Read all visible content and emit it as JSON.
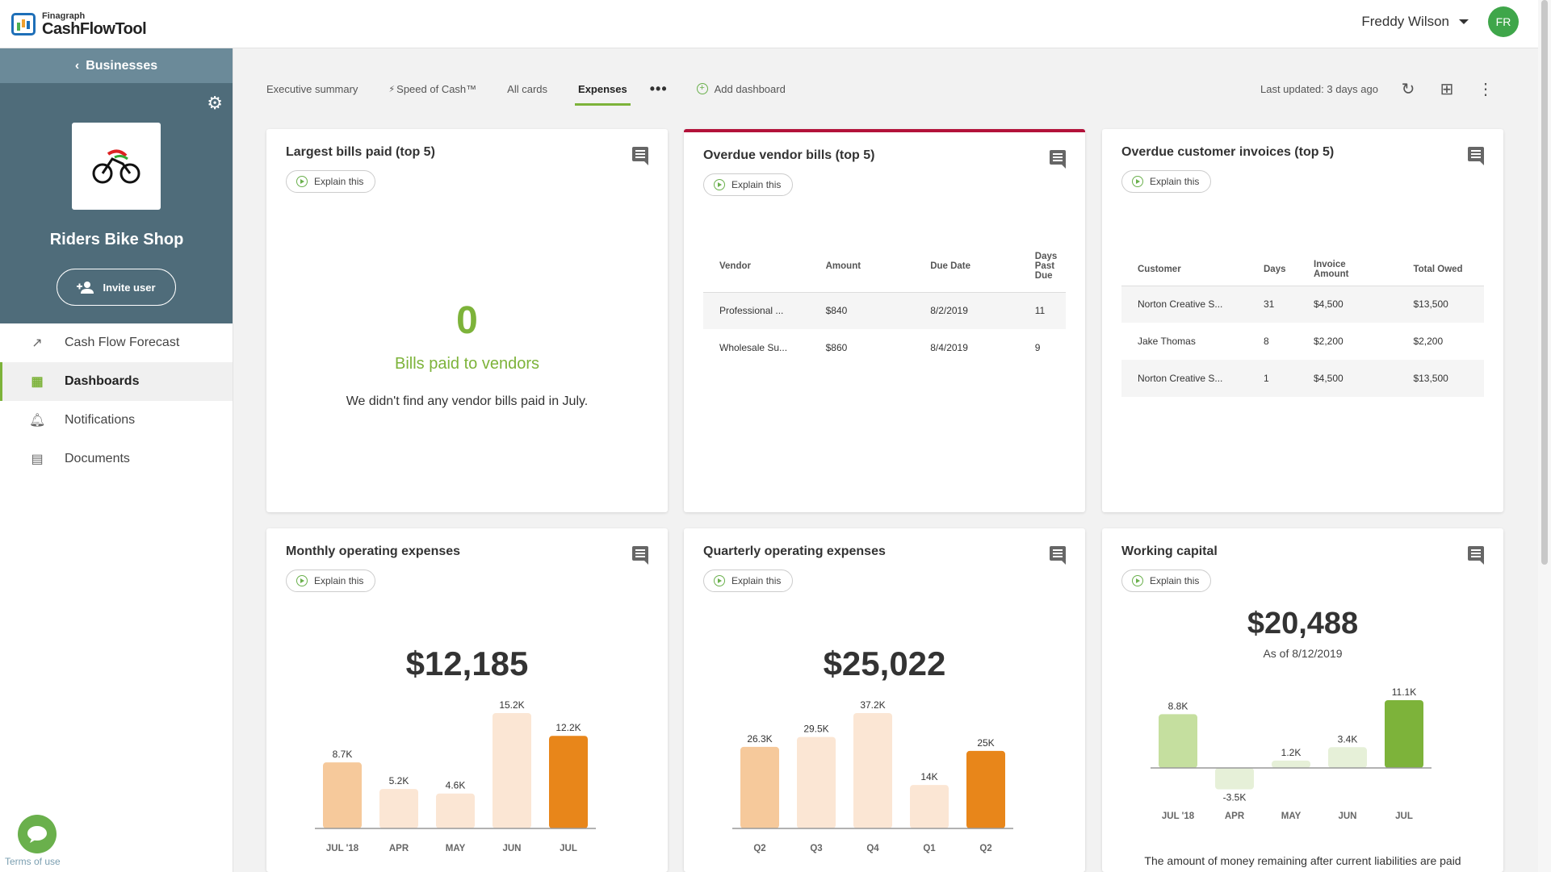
{
  "app": {
    "logo_small": "Finagraph",
    "logo_big": "CashFlowTool"
  },
  "user": {
    "name": "Freddy Wilson",
    "initials": "FR",
    "avatar_color": "#3fa64a"
  },
  "sidebar": {
    "back_label": "Businesses",
    "business_name": "Riders Bike Shop",
    "invite_label": "Invite user",
    "items": [
      {
        "label": "Cash Flow Forecast",
        "icon": "trending-up-icon"
      },
      {
        "label": "Dashboards",
        "icon": "dashboard-grid-icon",
        "active": true
      },
      {
        "label": "Notifications",
        "icon": "bell-icon"
      },
      {
        "label": "Documents",
        "icon": "document-icon"
      }
    ],
    "terms": "Terms of use"
  },
  "tabs": {
    "items": [
      "Executive summary",
      "Speed of Cash™",
      "All cards",
      "Expenses"
    ],
    "active": "Expenses",
    "add_label": "Add dashboard",
    "last_updated": "Last updated: 3 days ago"
  },
  "explain_label": "Explain this",
  "cards": {
    "largest_bills": {
      "title": "Largest bills paid (top 5)",
      "value": "0",
      "value_label": "Bills paid to vendors",
      "description": "We didn't find any vendor bills paid in July."
    },
    "overdue_vendor": {
      "title": "Overdue vendor bills (top 5)",
      "columns": [
        "Vendor",
        "Amount",
        "Due Date",
        "Days Past Due"
      ],
      "rows": [
        [
          "Professional ...",
          "$840",
          "8/2/2019",
          "11"
        ],
        [
          "Wholesale Su...",
          "$860",
          "8/4/2019",
          "9"
        ]
      ]
    },
    "overdue_customer": {
      "title": "Overdue customer invoices (top 5)",
      "columns": [
        "Customer",
        "Days",
        "Invoice Amount",
        "Total Owed"
      ],
      "rows": [
        [
          "Norton Creative S...",
          "31",
          "$4,500",
          "$13,500"
        ],
        [
          "Jake Thomas",
          "8",
          "$2,200",
          "$2,200"
        ],
        [
          "Norton Creative S...",
          "1",
          "$4,500",
          "$13,500"
        ]
      ]
    },
    "monthly": {
      "title": "Monthly operating expenses",
      "total": "$12,185"
    },
    "quarterly": {
      "title": "Quarterly operating expenses",
      "total": "$25,022"
    },
    "working": {
      "title": "Working capital",
      "total": "$20,488",
      "as_of": "As of 8/12/2019",
      "description": "The amount of money remaining after current liabilities are paid"
    }
  },
  "colors": {
    "accent_green": "#7db33a",
    "alert_red": "#b3123a",
    "orange": "#e8861a"
  },
  "chart_data": [
    {
      "type": "bar",
      "name": "monthly",
      "categories": [
        "JUL '18",
        "APR",
        "MAY",
        "JUN",
        "JUL"
      ],
      "values": [
        8.7,
        5.2,
        4.6,
        15.2,
        12.2
      ],
      "labels": [
        "8.7K",
        "5.2K",
        "4.6K",
        "15.2K",
        "12.2K"
      ],
      "colors": [
        "#f6c99b",
        "#fbe6d4",
        "#fbe6d4",
        "#fbe6d4",
        "#e8861a"
      ],
      "ylim": [
        0,
        16
      ]
    },
    {
      "type": "bar",
      "name": "quarterly",
      "categories": [
        "Q2",
        "Q3",
        "Q4",
        "Q1",
        "Q2"
      ],
      "values": [
        26.3,
        29.5,
        37.2,
        14,
        25
      ],
      "labels": [
        "26.3K",
        "29.5K",
        "37.2K",
        "14K",
        "25K"
      ],
      "colors": [
        "#f6c99b",
        "#fbe6d4",
        "#fbe6d4",
        "#fbe6d4",
        "#e8861a"
      ],
      "ylim": [
        0,
        39
      ]
    },
    {
      "type": "bar",
      "name": "working",
      "categories": [
        "JUL '18",
        "APR",
        "MAY",
        "JUN",
        "JUL"
      ],
      "values": [
        8.8,
        -3.5,
        1.2,
        3.4,
        11.1
      ],
      "labels": [
        "8.8K",
        "-3.5K",
        "1.2K",
        "3.4K",
        "11.1K"
      ],
      "colors": [
        "#c5df9f",
        "#e6f0d8",
        "#e6f0d8",
        "#e6f0d8",
        "#7db33a"
      ],
      "ylim": [
        -3.5,
        11.1
      ]
    }
  ]
}
